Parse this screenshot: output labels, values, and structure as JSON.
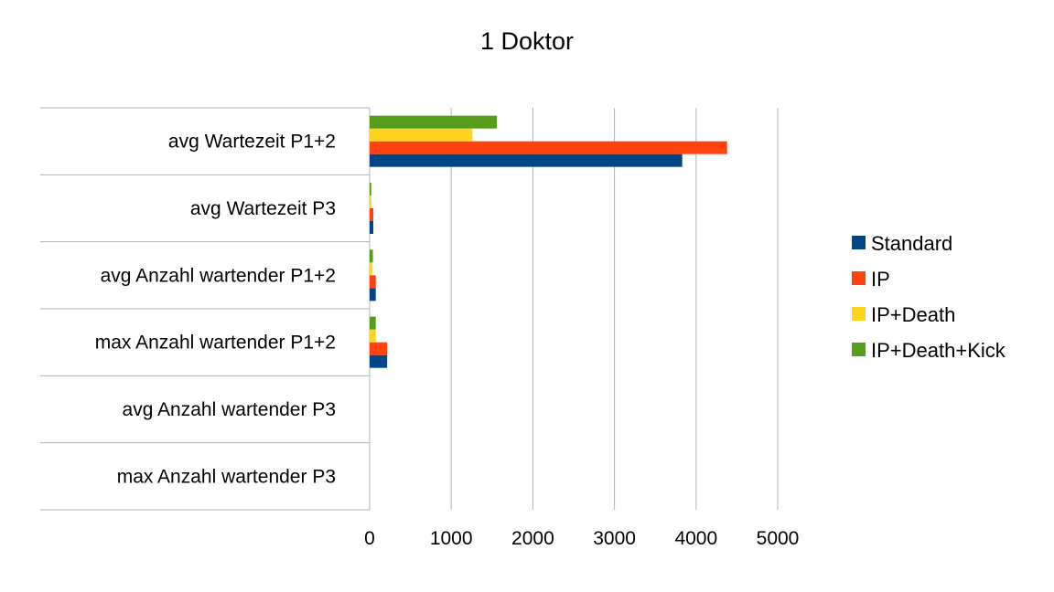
{
  "chart_data": {
    "type": "bar",
    "orientation": "horizontal",
    "title": "1 Doktor",
    "categories": [
      "avg Wartezeit P1+2",
      "avg Wartezeit P3",
      "avg Anzahl wartender P1+2",
      "max Anzahl wartender P1+2",
      "avg Anzahl wartender P3",
      "max Anzahl wartender P3"
    ],
    "series": [
      {
        "name": "Standard",
        "color": "#004586",
        "values": [
          3830,
          45,
          75,
          215,
          0,
          0
        ]
      },
      {
        "name": "IP",
        "color": "#ff420e",
        "values": [
          4380,
          45,
          75,
          215,
          0,
          0
        ]
      },
      {
        "name": "IP+Death",
        "color": "#ffd320",
        "values": [
          1260,
          20,
          30,
          75,
          0,
          0
        ]
      },
      {
        "name": "IP+Death+Kick",
        "color": "#579d1c",
        "values": [
          1560,
          20,
          40,
          75,
          0,
          0
        ]
      }
    ],
    "xlim": [
      0,
      5000
    ],
    "xticks": [
      "0",
      "1000",
      "2000",
      "3000",
      "4000",
      "5000"
    ],
    "grid": "vertical",
    "legend_position": "right"
  }
}
